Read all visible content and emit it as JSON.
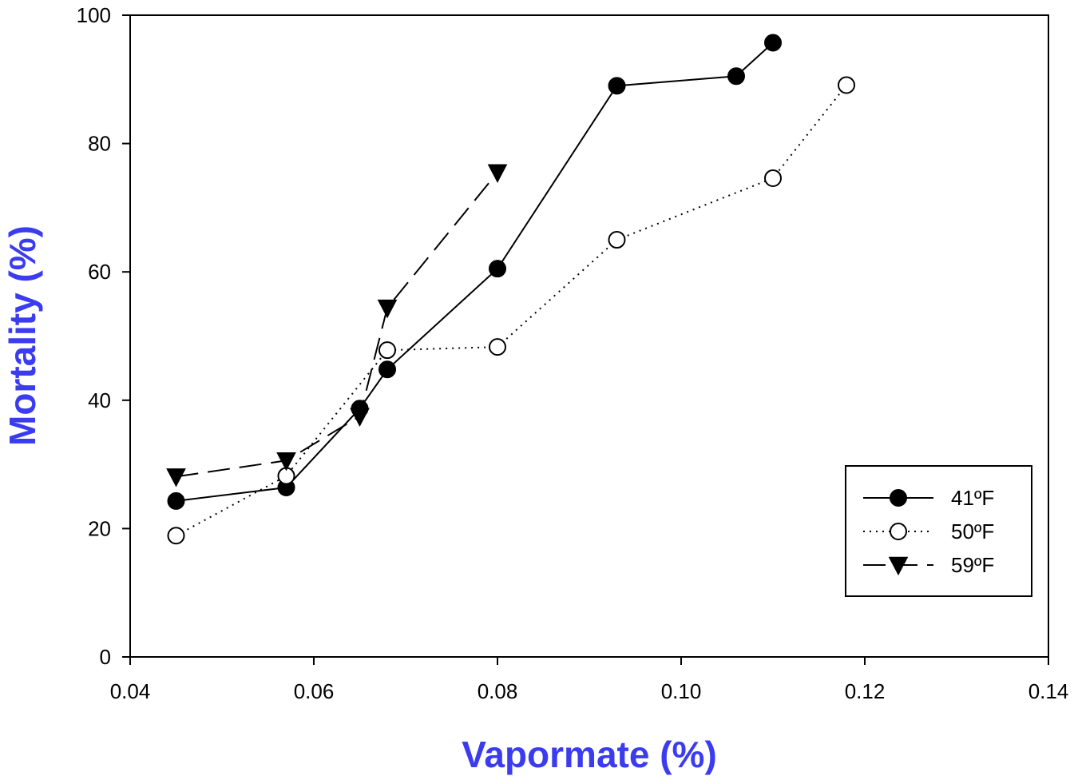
{
  "chart_data": {
    "type": "line",
    "title": "",
    "xlabel": "Vapormate (%)",
    "ylabel": "Mortality (%)",
    "xlim": [
      0.04,
      0.14
    ],
    "ylim": [
      0,
      100
    ],
    "x_ticks": [
      "0.04",
      "0.06",
      "0.08",
      "0.10",
      "0.12",
      "0.14"
    ],
    "y_ticks": [
      "0",
      "20",
      "40",
      "60",
      "80",
      "100"
    ],
    "grid": false,
    "legend_position": "bottom-right",
    "axis_title_color": "#3b3bf0",
    "series": [
      {
        "name": "41ºF",
        "marker": "filled-circle",
        "line_style": "solid",
        "color": "#000000",
        "x": [
          0.045,
          0.057,
          0.065,
          0.068,
          0.08,
          0.093,
          0.106,
          0.11
        ],
        "y": [
          24.3,
          26.4,
          38.7,
          44.8,
          60.5,
          89.0,
          90.5,
          95.7
        ]
      },
      {
        "name": "50ºF",
        "marker": "open-circle",
        "line_style": "dotted",
        "color": "#000000",
        "x": [
          0.045,
          0.057,
          0.068,
          0.08,
          0.093,
          0.11,
          0.118
        ],
        "y": [
          18.9,
          28.2,
          47.8,
          48.3,
          65.0,
          74.6,
          89.1
        ]
      },
      {
        "name": "59ºF",
        "marker": "filled-triangle-down",
        "line_style": "dashed",
        "color": "#000000",
        "x": [
          0.045,
          0.057,
          0.065,
          0.068,
          0.08
        ],
        "y": [
          28.1,
          30.6,
          37.5,
          54.4,
          75.5
        ]
      }
    ]
  }
}
